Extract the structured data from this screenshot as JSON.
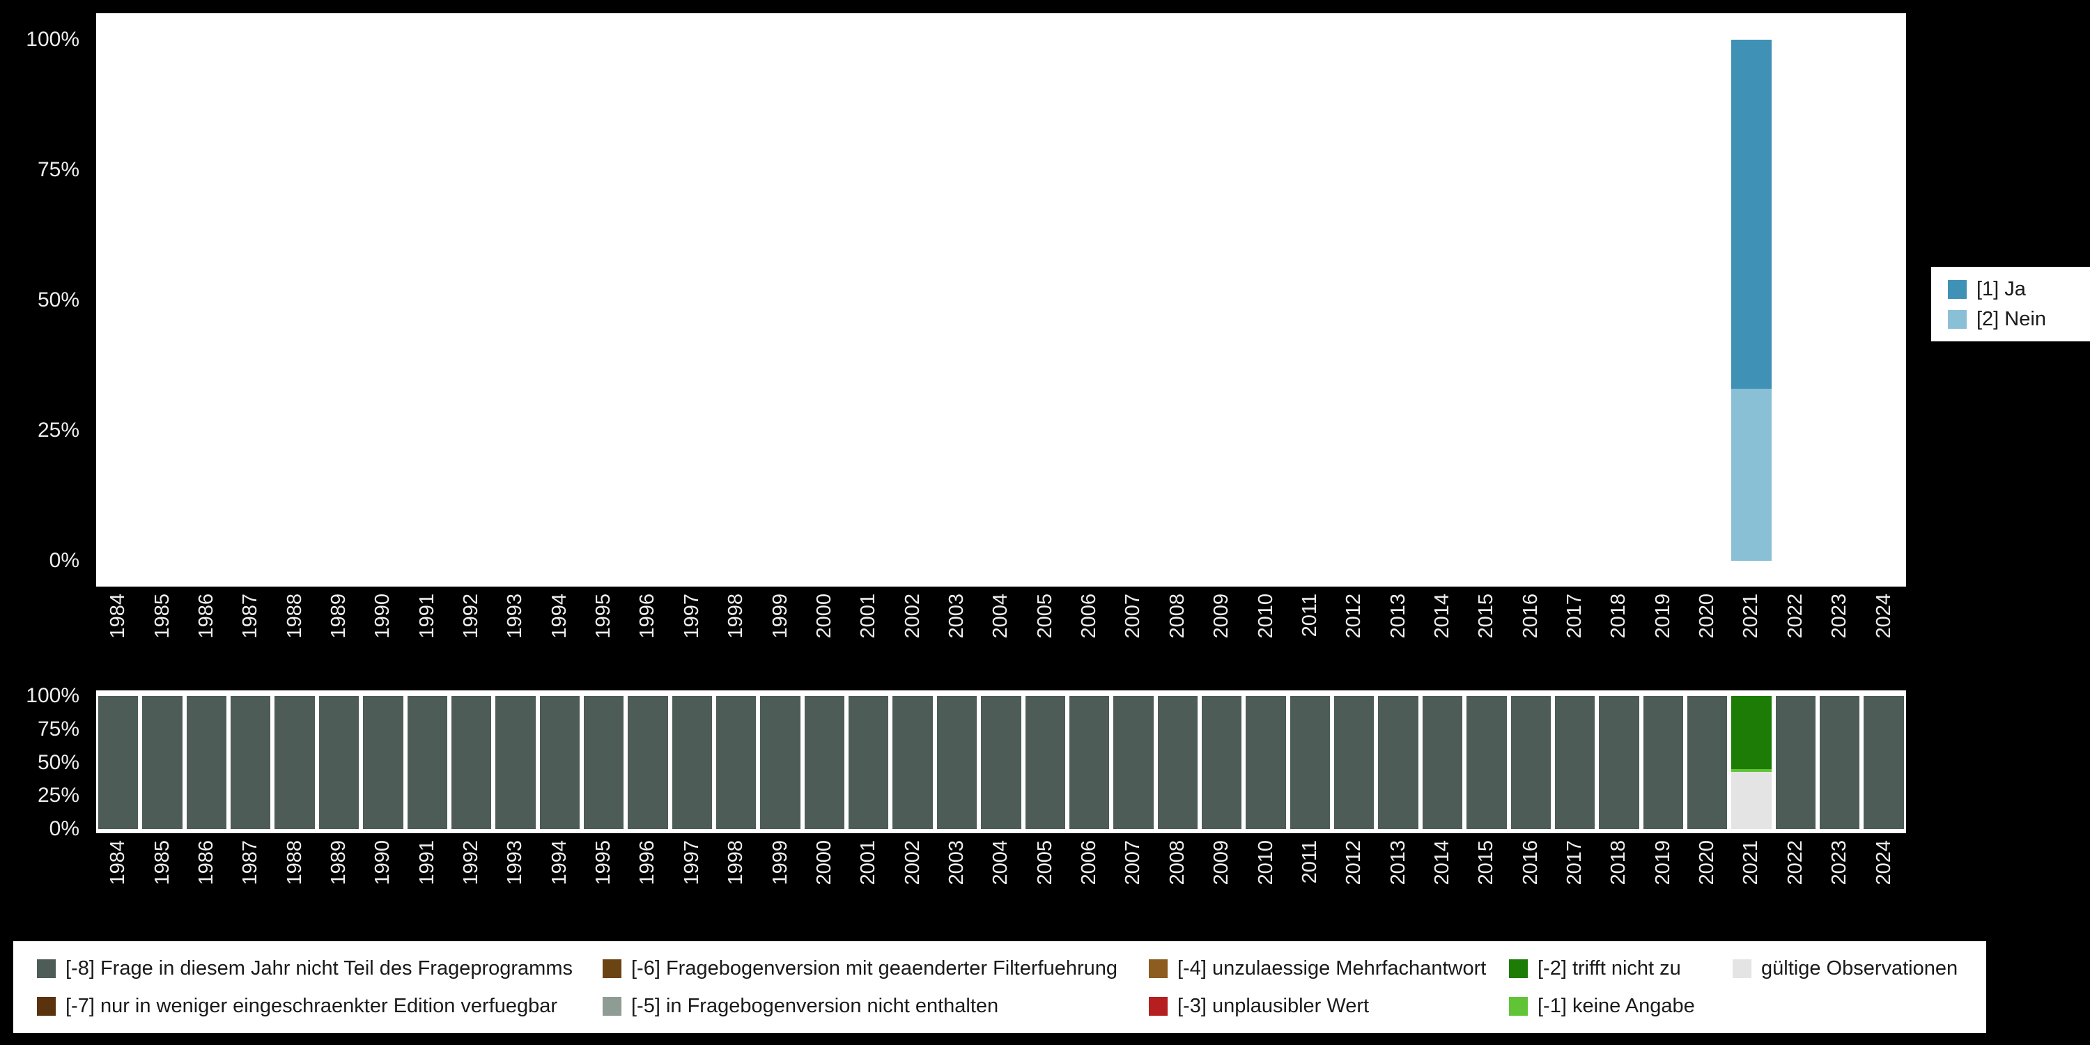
{
  "page": {
    "background_color": "#000000",
    "panel_color": "#ffffff",
    "axis_text_color": "#ededed"
  },
  "y_axis_ticks_top_down": [
    "100%",
    "75%",
    "50%",
    "25%",
    "0%"
  ],
  "chart_data": [
    {
      "type": "bar",
      "stacked": true,
      "title": "",
      "xlabel": "",
      "ylabel": "",
      "ylim": [
        0,
        100
      ],
      "yticks": [
        "0%",
        "25%",
        "50%",
        "75%",
        "100%"
      ],
      "grid": false,
      "legend_position": "right",
      "categories": [
        "1984",
        "1985",
        "1986",
        "1987",
        "1988",
        "1989",
        "1990",
        "1991",
        "1992",
        "1993",
        "1994",
        "1995",
        "1996",
        "1997",
        "1998",
        "1999",
        "2000",
        "2001",
        "2002",
        "2003",
        "2004",
        "2005",
        "2006",
        "2007",
        "2008",
        "2009",
        "2010",
        "2011",
        "2012",
        "2013",
        "2014",
        "2015",
        "2016",
        "2017",
        "2018",
        "2019",
        "2020",
        "2021",
        "2022",
        "2023",
        "2024"
      ],
      "series": [
        {
          "name": "[1] Ja",
          "color": "#3f91b5",
          "values": {
            "default": 0,
            "2021": 67
          }
        },
        {
          "name": "[2] Nein",
          "color": "#8ac0d6",
          "values": {
            "default": 0,
            "2021": 33
          }
        }
      ]
    },
    {
      "type": "bar",
      "stacked": true,
      "title": "",
      "xlabel": "",
      "ylabel": "",
      "ylim": [
        0,
        100
      ],
      "yticks": [
        "0%",
        "25%",
        "50%",
        "75%",
        "100%"
      ],
      "grid": false,
      "legend_position": "bottom",
      "categories": [
        "1984",
        "1985",
        "1986",
        "1987",
        "1988",
        "1989",
        "1990",
        "1991",
        "1992",
        "1993",
        "1994",
        "1995",
        "1996",
        "1997",
        "1998",
        "1999",
        "2000",
        "2001",
        "2002",
        "2003",
        "2004",
        "2005",
        "2006",
        "2007",
        "2008",
        "2009",
        "2010",
        "2011",
        "2012",
        "2013",
        "2014",
        "2015",
        "2016",
        "2017",
        "2018",
        "2019",
        "2020",
        "2021",
        "2022",
        "2023",
        "2024"
      ],
      "series": [
        {
          "name": "[-8] Frage in diesem Jahr nicht Teil des Frageprogramms",
          "color": "#4d5c56",
          "values": {
            "default": 100,
            "2021": 0
          }
        },
        {
          "name": "[-2] trifft nicht zu",
          "color": "#1d7c06",
          "values": {
            "default": 0,
            "2021": 55
          }
        },
        {
          "name": "[-1] keine Angabe",
          "color": "#61c437",
          "values": {
            "default": 0,
            "2021": 2
          }
        },
        {
          "name": "gültige Observationen",
          "color": "#e4e4e4",
          "values": {
            "default": 0,
            "2021": 43
          }
        }
      ]
    }
  ],
  "legend_top": {
    "items": [
      {
        "label": "[1] Ja",
        "color": "#3f91b5"
      },
      {
        "label": "[2] Nein",
        "color": "#8ac0d6"
      }
    ]
  },
  "legend_bottom": {
    "items": [
      {
        "label": "[-8] Frage in diesem Jahr nicht Teil des Frageprogramms",
        "color": "#4d5c56"
      },
      {
        "label": "[-7] nur in weniger eingeschraenkter Edition verfuegbar",
        "color": "#5a330e"
      },
      {
        "label": "[-6] Fragebogenversion mit geaenderter Filterfuehrung",
        "color": "#6b4414"
      },
      {
        "label": "[-5] in Fragebogenversion nicht enthalten",
        "color": "#8e9c94"
      },
      {
        "label": "[-4] unzulaessige Mehrfachantwort",
        "color": "#8d5c20"
      },
      {
        "label": "[-3] unplausibler Wert",
        "color": "#b51f1f"
      },
      {
        "label": "[-2] trifft nicht zu",
        "color": "#1d7c06"
      },
      {
        "label": "[-1] keine Angabe",
        "color": "#61c437"
      },
      {
        "label": "gültige Observationen",
        "color": "#e4e4e4"
      }
    ]
  }
}
